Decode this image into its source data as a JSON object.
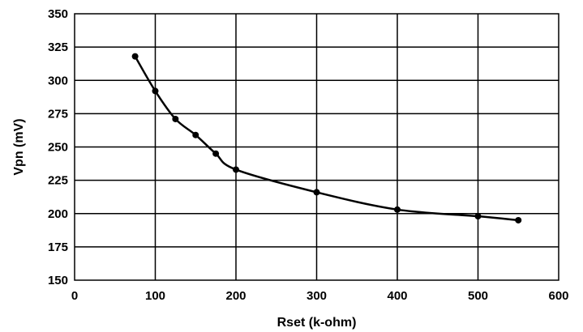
{
  "chart_data": {
    "type": "line",
    "title": "",
    "xlabel": "Rset (k-ohm)",
    "ylabel": "Vpn (mV)",
    "xlim": [
      0,
      600
    ],
    "ylim": [
      150,
      350
    ],
    "x_ticks": [
      0,
      100,
      200,
      300,
      400,
      500,
      600
    ],
    "y_ticks": [
      150,
      175,
      200,
      225,
      250,
      275,
      300,
      325,
      350
    ],
    "grid": true,
    "series": [
      {
        "x": [
          75,
          100,
          125,
          150,
          175,
          200,
          300,
          400,
          500,
          550
        ],
        "y": [
          318,
          292,
          271,
          259,
          245,
          233,
          216,
          203,
          198,
          195
        ]
      }
    ]
  }
}
